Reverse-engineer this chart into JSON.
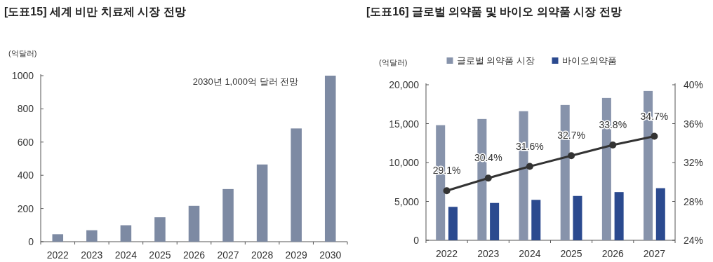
{
  "chart_data": [
    {
      "type": "bar",
      "title": "[도표15] 세계 비만 치료제 시장 전망",
      "ylabel": "(억달러)",
      "categories": [
        "2022",
        "2023",
        "2024",
        "2025",
        "2026",
        "2027",
        "2028",
        "2029",
        "2030"
      ],
      "values": [
        45,
        69,
        99,
        147,
        216,
        317,
        465,
        682,
        1000
      ],
      "color": "#7d8aa3",
      "ylim": [
        0,
        1000
      ],
      "yticks": [
        0,
        200,
        400,
        600,
        800,
        1000
      ],
      "annotations": [
        "2030년 1,000억 달러 전망"
      ]
    },
    {
      "type": "bar",
      "title": "[도표16] 글로벌 의약품 및 바이오 의약품 시장 전망",
      "ylabel": "(억달러)",
      "categories": [
        "2022",
        "2023",
        "2024",
        "2025",
        "2026",
        "2027"
      ],
      "series": [
        {
          "name": "글로벌 의약품 시장",
          "color": "#8793ab",
          "values": [
            14800,
            15600,
            16600,
            17400,
            18300,
            19200
          ]
        },
        {
          "name": "바이오의약품",
          "color": "#2b4a8f",
          "values": [
            4300,
            4800,
            5200,
            5700,
            6200,
            6700
          ]
        },
        {
          "type": "line",
          "axis": "y2",
          "color": "#333333",
          "values": [
            29.1,
            30.4,
            31.6,
            32.7,
            33.8,
            34.7
          ],
          "value_labels": [
            "29.1%",
            "30.4%",
            "31.6%",
            "32.7%",
            "33.8%",
            "34.7%"
          ]
        }
      ],
      "ylim": [
        0,
        20000
      ],
      "yticks": [
        0,
        {
          "value": 5000,
          "label": "5,000"
        },
        {
          "value": 10000,
          "label": "10,000"
        },
        {
          "value": 15000,
          "label": "15,000"
        },
        {
          "value": 20000,
          "label": "20,000"
        }
      ],
      "y2lim": [
        24,
        40
      ],
      "y2ticks": [
        {
          "value": 24,
          "label": "24%"
        },
        {
          "value": 28,
          "label": "28%"
        },
        {
          "value": 32,
          "label": "32%"
        },
        {
          "value": 36,
          "label": "36%"
        },
        {
          "value": 40,
          "label": "40%"
        }
      ],
      "legend": "top",
      "marker": "circle",
      "line_style": "solid"
    }
  ]
}
